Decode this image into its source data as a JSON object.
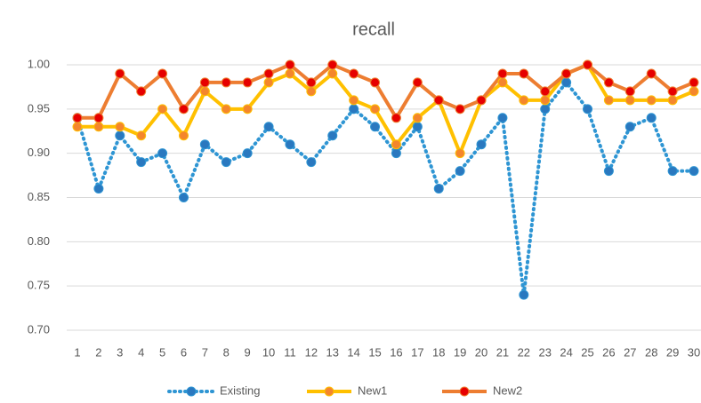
{
  "chart_data": {
    "type": "line",
    "title": "recall",
    "categories": [
      "1",
      "2",
      "3",
      "4",
      "5",
      "6",
      "7",
      "8",
      "9",
      "10",
      "11",
      "12",
      "13",
      "14",
      "15",
      "16",
      "17",
      "18",
      "19",
      "20",
      "21",
      "22",
      "23",
      "24",
      "25",
      "26",
      "27",
      "28",
      "29",
      "30"
    ],
    "series": [
      {
        "name": "Existing",
        "color": "#2e95d3",
        "marker_color": "#2a78bf",
        "line_style": "dotted",
        "values": [
          0.94,
          0.86,
          0.92,
          0.89,
          0.9,
          0.85,
          0.91,
          0.89,
          0.9,
          0.93,
          0.91,
          0.89,
          0.92,
          0.95,
          0.93,
          0.9,
          0.93,
          0.86,
          0.88,
          0.91,
          0.94,
          0.74,
          0.95,
          0.98,
          0.95,
          0.88,
          0.93,
          0.94,
          0.88,
          0.88
        ]
      },
      {
        "name": "New1",
        "color": "#ffc000",
        "marker_color": "#f4862c",
        "line_style": "solid",
        "values": [
          0.93,
          0.93,
          0.93,
          0.92,
          0.95,
          0.92,
          0.97,
          0.95,
          0.95,
          0.98,
          0.99,
          0.97,
          0.99,
          0.96,
          0.95,
          0.91,
          0.94,
          0.96,
          0.9,
          0.96,
          0.98,
          0.96,
          0.96,
          0.99,
          1.0,
          0.96,
          0.96,
          0.96,
          0.96,
          0.97
        ]
      },
      {
        "name": "New2",
        "color": "#ed7d31",
        "marker_color": "#e60000",
        "line_style": "solid",
        "values": [
          0.94,
          0.94,
          0.99,
          0.97,
          0.99,
          0.95,
          0.98,
          0.98,
          0.98,
          0.99,
          1.0,
          0.98,
          1.0,
          0.99,
          0.98,
          0.94,
          0.98,
          0.96,
          0.95,
          0.96,
          0.99,
          0.99,
          0.97,
          0.99,
          1.0,
          0.98,
          0.97,
          0.99,
          0.97,
          0.98
        ]
      }
    ],
    "ylim": [
      0.7,
      1.0
    ],
    "yticks": [
      {
        "value": 0.7,
        "label": "0.70"
      },
      {
        "value": 0.75,
        "label": "0.75"
      },
      {
        "value": 0.8,
        "label": "0.80"
      },
      {
        "value": 0.85,
        "label": "0.85"
      },
      {
        "value": 0.9,
        "label": "0.90"
      },
      {
        "value": 0.95,
        "label": "0.95"
      },
      {
        "value": 1.0,
        "label": "1.00"
      }
    ],
    "grid": true,
    "legend": "bottom"
  }
}
